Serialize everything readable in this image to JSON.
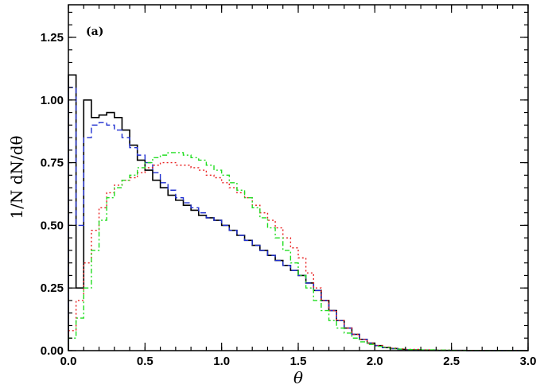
{
  "chart_data": {
    "type": "line",
    "title": "",
    "annotation": "(a)",
    "xlabel": "θ",
    "ylabel": "1/N dN/dθ",
    "xlim": [
      0.0,
      3.0
    ],
    "ylim": [
      0.0,
      1.38
    ],
    "xticks": [
      "0.0",
      "0.5",
      "1.0",
      "1.5",
      "2.0",
      "2.5",
      "3.0"
    ],
    "yticks": [
      "0.00",
      "0.25",
      "0.50",
      "0.75",
      "1.00",
      "1.25"
    ],
    "xtick_values": [
      0.0,
      0.5,
      1.0,
      1.5,
      2.0,
      2.5,
      3.0
    ],
    "ytick_values": [
      0.0,
      0.25,
      0.5,
      0.75,
      1.0,
      1.25
    ],
    "grid": false,
    "legend": "none",
    "series": [
      {
        "color": "#000000",
        "style": "solid",
        "x": [
          0.0,
          0.05,
          0.1,
          0.15,
          0.2,
          0.25,
          0.3,
          0.35,
          0.4,
          0.45,
          0.5,
          0.55,
          0.6,
          0.65,
          0.7,
          0.75,
          0.8,
          0.85,
          0.9,
          0.95,
          1.0,
          1.05,
          1.1,
          1.15,
          1.2,
          1.25,
          1.3,
          1.35,
          1.4,
          1.45,
          1.5,
          1.55,
          1.6,
          1.65,
          1.7,
          1.75,
          1.8,
          1.85,
          1.9,
          1.95,
          2.0,
          2.05,
          2.1,
          2.15,
          2.2,
          2.3,
          2.4,
          2.5,
          2.6,
          2.7,
          2.8,
          2.9,
          3.0
        ],
        "y": [
          1.1,
          0.25,
          1.0,
          0.93,
          0.94,
          0.95,
          0.93,
          0.88,
          0.82,
          0.76,
          0.72,
          0.68,
          0.65,
          0.62,
          0.6,
          0.58,
          0.56,
          0.54,
          0.53,
          0.52,
          0.5,
          0.48,
          0.46,
          0.44,
          0.42,
          0.4,
          0.38,
          0.36,
          0.34,
          0.32,
          0.3,
          0.27,
          0.24,
          0.2,
          0.16,
          0.12,
          0.09,
          0.065,
          0.045,
          0.03,
          0.02,
          0.012,
          0.008,
          0.005,
          0.003,
          0.002,
          0.001,
          0.001,
          0.0,
          0.0,
          0.0,
          0.0,
          0.0
        ]
      },
      {
        "color": "#1f2fd0",
        "style": "dashed",
        "x": [
          0.0,
          0.05,
          0.1,
          0.15,
          0.2,
          0.25,
          0.3,
          0.35,
          0.4,
          0.45,
          0.5,
          0.55,
          0.6,
          0.65,
          0.7,
          0.75,
          0.8,
          0.85,
          0.9,
          0.95,
          1.0,
          1.05,
          1.1,
          1.15,
          1.2,
          1.25,
          1.3,
          1.35,
          1.4,
          1.45,
          1.5,
          1.55,
          1.6,
          1.65,
          1.7,
          1.75,
          1.8,
          1.85,
          1.9,
          1.95,
          2.0,
          2.05,
          2.1,
          2.15,
          2.2,
          2.3,
          2.4,
          2.5,
          2.6,
          2.7,
          2.8,
          2.9,
          3.0
        ],
        "y": [
          1.05,
          0.5,
          0.85,
          0.9,
          0.91,
          0.9,
          0.88,
          0.85,
          0.81,
          0.78,
          0.75,
          0.71,
          0.67,
          0.64,
          0.61,
          0.59,
          0.57,
          0.55,
          0.53,
          0.52,
          0.5,
          0.48,
          0.46,
          0.44,
          0.42,
          0.4,
          0.38,
          0.36,
          0.34,
          0.32,
          0.3,
          0.27,
          0.24,
          0.2,
          0.16,
          0.12,
          0.09,
          0.065,
          0.045,
          0.03,
          0.02,
          0.012,
          0.008,
          0.005,
          0.003,
          0.002,
          0.001,
          0.001,
          0.0,
          0.0,
          0.0,
          0.0,
          0.0
        ]
      },
      {
        "color": "#e82020",
        "style": "dotted",
        "x": [
          0.0,
          0.05,
          0.1,
          0.15,
          0.2,
          0.25,
          0.3,
          0.35,
          0.4,
          0.45,
          0.5,
          0.55,
          0.6,
          0.65,
          0.7,
          0.75,
          0.8,
          0.85,
          0.9,
          0.95,
          1.0,
          1.05,
          1.1,
          1.15,
          1.2,
          1.25,
          1.3,
          1.35,
          1.4,
          1.45,
          1.5,
          1.55,
          1.6,
          1.65,
          1.7,
          1.75,
          1.8,
          1.85,
          1.9,
          1.95,
          2.0,
          2.05,
          2.1,
          2.15,
          2.2,
          2.3,
          2.4,
          2.5,
          2.6,
          2.7,
          2.8,
          2.9,
          3.0
        ],
        "y": [
          0.08,
          0.2,
          0.35,
          0.48,
          0.57,
          0.63,
          0.66,
          0.68,
          0.69,
          0.71,
          0.73,
          0.74,
          0.75,
          0.75,
          0.74,
          0.74,
          0.73,
          0.72,
          0.7,
          0.69,
          0.67,
          0.65,
          0.63,
          0.61,
          0.58,
          0.55,
          0.52,
          0.49,
          0.45,
          0.41,
          0.37,
          0.31,
          0.25,
          0.2,
          0.16,
          0.12,
          0.09,
          0.065,
          0.045,
          0.03,
          0.02,
          0.014,
          0.01,
          0.007,
          0.005,
          0.003,
          0.002,
          0.001,
          0.001,
          0.0,
          0.0,
          0.0,
          0.0
        ]
      },
      {
        "color": "#22dd22",
        "style": "dashdot",
        "x": [
          0.0,
          0.05,
          0.1,
          0.15,
          0.2,
          0.25,
          0.3,
          0.35,
          0.4,
          0.45,
          0.5,
          0.55,
          0.6,
          0.65,
          0.7,
          0.75,
          0.8,
          0.85,
          0.9,
          0.95,
          1.0,
          1.05,
          1.1,
          1.15,
          1.2,
          1.25,
          1.3,
          1.35,
          1.4,
          1.45,
          1.5,
          1.55,
          1.6,
          1.65,
          1.7,
          1.75,
          1.8,
          1.85,
          1.9,
          1.95,
          2.0,
          2.05,
          2.1,
          2.15,
          2.2,
          2.3,
          2.4,
          2.5,
          2.6,
          2.7,
          2.8,
          2.9,
          3.0
        ],
        "y": [
          0.05,
          0.13,
          0.25,
          0.4,
          0.52,
          0.61,
          0.65,
          0.68,
          0.7,
          0.73,
          0.75,
          0.77,
          0.78,
          0.79,
          0.79,
          0.78,
          0.77,
          0.76,
          0.74,
          0.72,
          0.7,
          0.67,
          0.64,
          0.61,
          0.57,
          0.53,
          0.49,
          0.45,
          0.4,
          0.35,
          0.3,
          0.25,
          0.2,
          0.16,
          0.12,
          0.09,
          0.07,
          0.05,
          0.035,
          0.025,
          0.017,
          0.012,
          0.008,
          0.006,
          0.004,
          0.003,
          0.002,
          0.001,
          0.001,
          0.0,
          0.0,
          0.0,
          0.0
        ]
      }
    ]
  }
}
